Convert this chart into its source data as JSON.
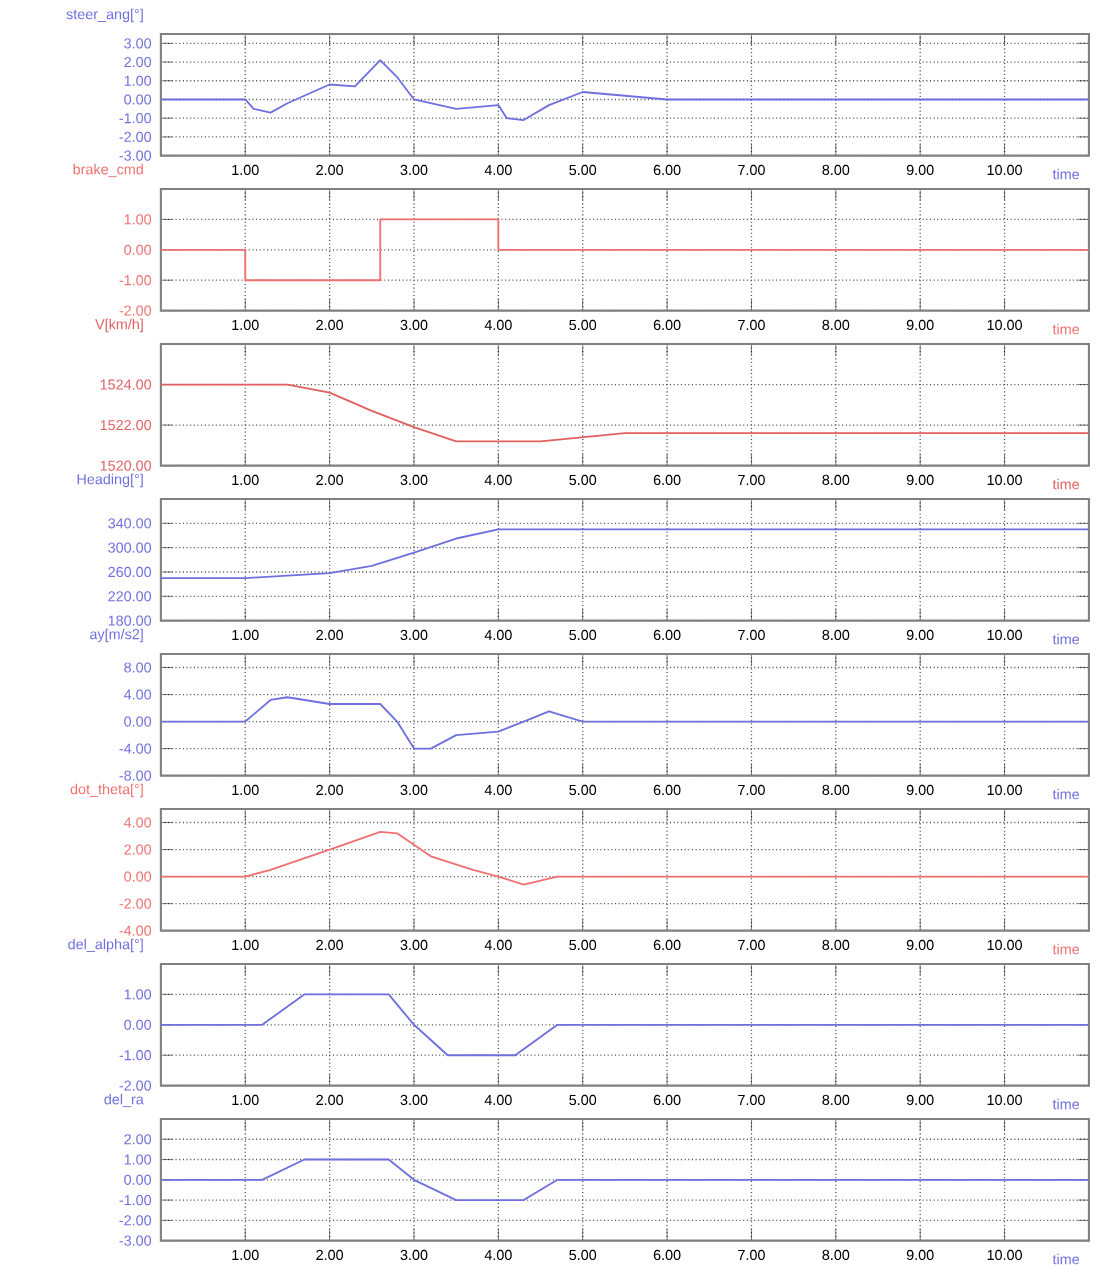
{
  "chart_data": [
    {
      "type": "line",
      "ylabel": "steer_ang[°]",
      "xlabel": "time",
      "grid": true,
      "xlim": [
        0,
        11
      ],
      "ylim": [
        -3,
        3.5
      ],
      "xticks": [
        {
          "value": 1,
          "label": "1.00"
        },
        {
          "value": 2,
          "label": "2.00"
        },
        {
          "value": 3,
          "label": "3.00"
        },
        {
          "value": 4,
          "label": "4.00"
        },
        {
          "value": 5,
          "label": "5.00"
        },
        {
          "value": 6,
          "label": "6.00"
        },
        {
          "value": 7,
          "label": "7.00"
        },
        {
          "value": 8,
          "label": "8.00"
        },
        {
          "value": 9,
          "label": "9.00"
        },
        {
          "value": 10,
          "label": "10.00"
        }
      ],
      "yticks": [
        {
          "value": 3,
          "label": "3.00"
        },
        {
          "value": 2,
          "label": "2.00"
        },
        {
          "value": 1,
          "label": "1.00"
        },
        {
          "value": 0,
          "label": "0.00"
        },
        {
          "value": -1,
          "label": "-1.00"
        },
        {
          "value": -2,
          "label": "-2.00"
        },
        {
          "value": -3,
          "label": "-3.00"
        }
      ],
      "series": [
        {
          "color": "#6f6fe0",
          "x": [
            0,
            1,
            1.1,
            1.3,
            1.5,
            2,
            2.3,
            2.6,
            2.8,
            3,
            3.5,
            4,
            4.1,
            4.3,
            4.6,
            5,
            6,
            11
          ],
          "values": [
            0,
            0,
            -0.5,
            -0.7,
            -0.2,
            0.8,
            0.7,
            2.1,
            1.2,
            0,
            -0.5,
            -0.3,
            -1,
            -1.1,
            -0.3,
            0.4,
            0,
            0
          ]
        }
      ]
    },
    {
      "type": "line",
      "ylabel": "brake_cmd",
      "xlabel": "time",
      "grid": true,
      "xlim": [
        0,
        11
      ],
      "ylim": [
        -2,
        2
      ],
      "xticks": [
        {
          "value": 1,
          "label": "1.00"
        },
        {
          "value": 2,
          "label": "2.00"
        },
        {
          "value": 3,
          "label": "3.00"
        },
        {
          "value": 4,
          "label": "4.00"
        },
        {
          "value": 5,
          "label": "5.00"
        },
        {
          "value": 6,
          "label": "6.00"
        },
        {
          "value": 7,
          "label": "7.00"
        },
        {
          "value": 8,
          "label": "8.00"
        },
        {
          "value": 9,
          "label": "9.00"
        },
        {
          "value": 10,
          "label": "10.00"
        }
      ],
      "yticks": [
        {
          "value": 1,
          "label": "1.00"
        },
        {
          "value": 0,
          "label": "0.00"
        },
        {
          "value": -1,
          "label": "-1.00"
        },
        {
          "value": -2,
          "label": "-2.00"
        }
      ],
      "series": [
        {
          "color": "#f07070",
          "x": [
            0,
            1,
            1,
            2.6,
            2.6,
            4,
            4,
            11
          ],
          "values": [
            0,
            0,
            -1,
            -1,
            1,
            1,
            0,
            0
          ]
        }
      ]
    },
    {
      "type": "line",
      "ylabel": "V[km/h]",
      "xlabel": "time",
      "grid": true,
      "xlim": [
        0,
        11
      ],
      "ylim": [
        1520,
        1526
      ],
      "xticks": [
        {
          "value": 1,
          "label": "1.00"
        },
        {
          "value": 2,
          "label": "2.00"
        },
        {
          "value": 3,
          "label": "3.00"
        },
        {
          "value": 4,
          "label": "4.00"
        },
        {
          "value": 5,
          "label": "5.00"
        },
        {
          "value": 6,
          "label": "6.00"
        },
        {
          "value": 7,
          "label": "7.00"
        },
        {
          "value": 8,
          "label": "8.00"
        },
        {
          "value": 9,
          "label": "9.00"
        },
        {
          "value": 10,
          "label": "10.00"
        }
      ],
      "yticks": [
        {
          "value": 1524,
          "label": "1524.00"
        },
        {
          "value": 1522,
          "label": "1522.00"
        },
        {
          "value": 1520,
          "label": "1520.00"
        }
      ],
      "series": [
        {
          "color": "#e06060",
          "x": [
            0,
            1.5,
            2,
            2.5,
            3,
            3.5,
            4.5,
            5.5,
            11
          ],
          "values": [
            1524,
            1524,
            1523.6,
            1522.7,
            1521.9,
            1521.2,
            1521.2,
            1521.6,
            1521.6
          ]
        }
      ]
    },
    {
      "type": "line",
      "ylabel": "Heading[°]",
      "xlabel": "time",
      "grid": true,
      "xlim": [
        0,
        11
      ],
      "ylim": [
        180,
        380
      ],
      "xticks": [
        {
          "value": 1,
          "label": "1.00"
        },
        {
          "value": 2,
          "label": "2.00"
        },
        {
          "value": 3,
          "label": "3.00"
        },
        {
          "value": 4,
          "label": "4.00"
        },
        {
          "value": 5,
          "label": "5.00"
        },
        {
          "value": 6,
          "label": "6.00"
        },
        {
          "value": 7,
          "label": "7.00"
        },
        {
          "value": 8,
          "label": "8.00"
        },
        {
          "value": 9,
          "label": "9.00"
        },
        {
          "value": 10,
          "label": "10.00"
        }
      ],
      "yticks": [
        {
          "value": 340,
          "label": "340.00"
        },
        {
          "value": 300,
          "label": "300.00"
        },
        {
          "value": 260,
          "label": "260.00"
        },
        {
          "value": 220,
          "label": "220.00"
        },
        {
          "value": 180,
          "label": "180.00"
        }
      ],
      "series": [
        {
          "color": "#6f6fe0",
          "x": [
            0,
            1,
            2,
            2.5,
            3,
            3.5,
            4,
            11
          ],
          "values": [
            250,
            250,
            258,
            270,
            292,
            315,
            330,
            330
          ]
        }
      ]
    },
    {
      "type": "line",
      "ylabel": "ay[m/s2]",
      "xlabel": "time",
      "grid": true,
      "xlim": [
        0,
        11
      ],
      "ylim": [
        -8,
        10
      ],
      "xticks": [
        {
          "value": 1,
          "label": "1.00"
        },
        {
          "value": 2,
          "label": "2.00"
        },
        {
          "value": 3,
          "label": "3.00"
        },
        {
          "value": 4,
          "label": "4.00"
        },
        {
          "value": 5,
          "label": "5.00"
        },
        {
          "value": 6,
          "label": "6.00"
        },
        {
          "value": 7,
          "label": "7.00"
        },
        {
          "value": 8,
          "label": "8.00"
        },
        {
          "value": 9,
          "label": "9.00"
        },
        {
          "value": 10,
          "label": "10.00"
        }
      ],
      "yticks": [
        {
          "value": 8,
          "label": "8.00"
        },
        {
          "value": 4,
          "label": "4.00"
        },
        {
          "value": 0,
          "label": "0.00"
        },
        {
          "value": -4,
          "label": "-4.00"
        },
        {
          "value": -8,
          "label": "-8.00"
        }
      ],
      "series": [
        {
          "color": "#6f6fe0",
          "x": [
            0,
            1,
            1.3,
            1.5,
            2,
            2.6,
            2.8,
            3,
            3.2,
            3.5,
            4,
            4.3,
            4.6,
            5,
            11
          ],
          "values": [
            0,
            0,
            3.2,
            3.6,
            2.6,
            2.6,
            0,
            -4,
            -4,
            -2,
            -1.5,
            0,
            1.5,
            0,
            0
          ]
        }
      ]
    },
    {
      "type": "line",
      "ylabel": "dot_theta[°]",
      "xlabel": "time",
      "grid": true,
      "xlim": [
        0,
        11
      ],
      "ylim": [
        -4,
        5
      ],
      "xticks": [
        {
          "value": 1,
          "label": "1.00"
        },
        {
          "value": 2,
          "label": "2.00"
        },
        {
          "value": 3,
          "label": "3.00"
        },
        {
          "value": 4,
          "label": "4.00"
        },
        {
          "value": 5,
          "label": "5.00"
        },
        {
          "value": 6,
          "label": "6.00"
        },
        {
          "value": 7,
          "label": "7.00"
        },
        {
          "value": 8,
          "label": "8.00"
        },
        {
          "value": 9,
          "label": "9.00"
        },
        {
          "value": 10,
          "label": "10.00"
        }
      ],
      "yticks": [
        {
          "value": 4,
          "label": "4.00"
        },
        {
          "value": 2,
          "label": "2.00"
        },
        {
          "value": 0,
          "label": "0.00"
        },
        {
          "value": -2,
          "label": "-2.00"
        },
        {
          "value": -4,
          "label": "-4.00"
        }
      ],
      "series": [
        {
          "color": "#f07070",
          "x": [
            0,
            1,
            1.3,
            2,
            2.6,
            2.8,
            3.2,
            3.7,
            4,
            4.3,
            4.7,
            11
          ],
          "values": [
            0,
            0,
            0.5,
            2,
            3.3,
            3.2,
            1.5,
            0.5,
            0,
            -0.6,
            0,
            0
          ]
        }
      ]
    },
    {
      "type": "line",
      "ylabel": "del_alpha[°]",
      "xlabel": "time",
      "grid": true,
      "xlim": [
        0,
        11
      ],
      "ylim": [
        -2,
        2
      ],
      "xticks": [
        {
          "value": 1,
          "label": "1.00"
        },
        {
          "value": 2,
          "label": "2.00"
        },
        {
          "value": 3,
          "label": "3.00"
        },
        {
          "value": 4,
          "label": "4.00"
        },
        {
          "value": 5,
          "label": "5.00"
        },
        {
          "value": 6,
          "label": "6.00"
        },
        {
          "value": 7,
          "label": "7.00"
        },
        {
          "value": 8,
          "label": "8.00"
        },
        {
          "value": 9,
          "label": "9.00"
        },
        {
          "value": 10,
          "label": "10.00"
        }
      ],
      "yticks": [
        {
          "value": 1,
          "label": "1.00"
        },
        {
          "value": 0,
          "label": "0.00"
        },
        {
          "value": -1,
          "label": "-1.00"
        },
        {
          "value": -2,
          "label": "-2.00"
        }
      ],
      "series": [
        {
          "color": "#6f6fe0",
          "x": [
            0,
            1.2,
            1.7,
            2.7,
            3,
            3.4,
            4.2,
            4.7,
            11
          ],
          "values": [
            0,
            0,
            1,
            1,
            0,
            -1,
            -1,
            0,
            0
          ]
        }
      ]
    },
    {
      "type": "line",
      "ylabel": "del_ra",
      "xlabel": "time",
      "grid": true,
      "xlim": [
        0,
        11
      ],
      "ylim": [
        -3,
        3
      ],
      "xticks": [
        {
          "value": 1,
          "label": "1.00"
        },
        {
          "value": 2,
          "label": "2.00"
        },
        {
          "value": 3,
          "label": "3.00"
        },
        {
          "value": 4,
          "label": "4.00"
        },
        {
          "value": 5,
          "label": "5.00"
        },
        {
          "value": 6,
          "label": "6.00"
        },
        {
          "value": 7,
          "label": "7.00"
        },
        {
          "value": 8,
          "label": "8.00"
        },
        {
          "value": 9,
          "label": "9.00"
        },
        {
          "value": 10,
          "label": "10.00"
        }
      ],
      "yticks": [
        {
          "value": 2,
          "label": "2.00"
        },
        {
          "value": 1,
          "label": "1.00"
        },
        {
          "value": 0,
          "label": "0.00"
        },
        {
          "value": -1,
          "label": "-1.00"
        },
        {
          "value": -2,
          "label": "-2.00"
        },
        {
          "value": -3,
          "label": "-3.00"
        }
      ],
      "series": [
        {
          "color": "#6f6fe0",
          "x": [
            0,
            1.2,
            1.7,
            2.7,
            3,
            3.5,
            4.3,
            4.7,
            11
          ],
          "values": [
            0,
            0,
            1,
            1,
            0,
            -1,
            -1,
            0,
            0
          ]
        }
      ]
    }
  ]
}
